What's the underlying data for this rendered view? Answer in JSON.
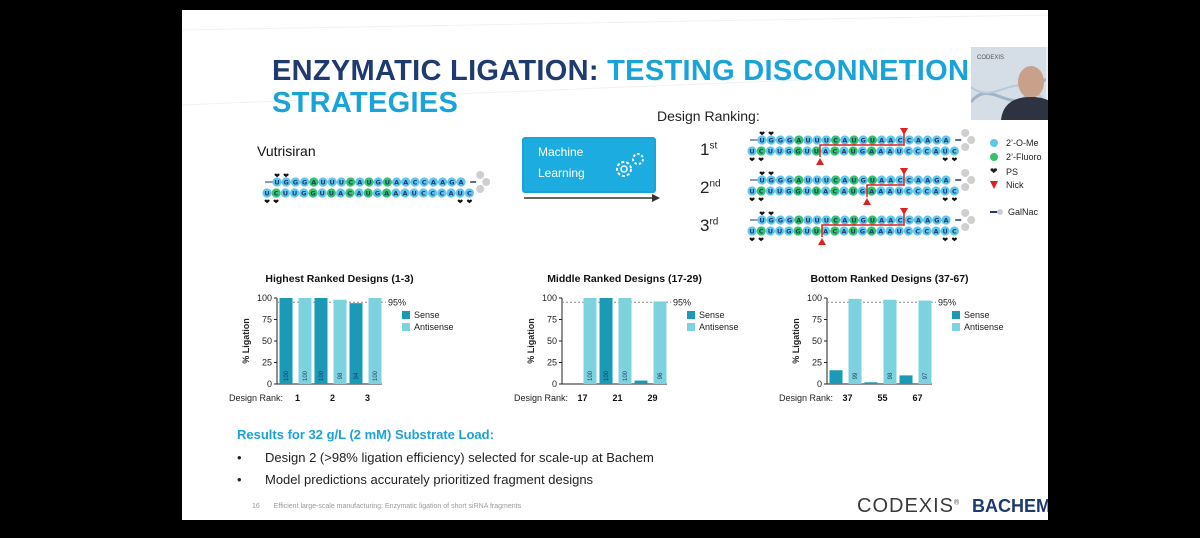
{
  "slide": {
    "title_part1": "ENZYMATIC LIGATION: ",
    "title_part2": "TESTING DISCONNETION",
    "title_part3": "STRATEGIES",
    "design_ranking_label": "Design Ranking:",
    "vutrisiran_label": "Vutrisiran",
    "ml_label_line1": "Machine",
    "ml_label_line2": "Learning",
    "ranks": [
      {
        "num": "1",
        "sup": "st"
      },
      {
        "num": "2",
        "sup": "nd"
      },
      {
        "num": "3",
        "sup": "rd"
      }
    ],
    "webcam_label": "CODEXIS",
    "legend": {
      "ome": "2’-O-Me",
      "fluoro": "2’-Fluoro",
      "ps": "PS",
      "nick": "Nick",
      "galnac": "GalNac"
    },
    "results_heading": "Results for 32 g/L (2 mM) Substrate Load:",
    "bullets": [
      "Design 2 (>98% ligation efficiency) selected for scale-up at Bachem",
      "Model predictions accurately prioritized fragment designs"
    ],
    "page_number": "16",
    "footer_text": "Efficient large-scale manufacturing: Enzymatic ligation of short siRNA fragments",
    "logo_codexis": "CODEXIS",
    "logo_codexis_mark": "®",
    "logo_bachem": "BACHEM"
  },
  "colors": {
    "title_dark": "#1f3a6e",
    "title_cyan": "#1aa3d9",
    "sense": "#1a9ab5",
    "antisense": "#7dd3dd",
    "nick": "#e02020",
    "ome": "#5fc7ee",
    "fluoro": "#31c46a"
  },
  "dna": {
    "sense_seq": "UGGGAUUUCAUGUAACCAAGA",
    "antisense_seq": "UCUUGGUUACAUGAAAUCCCAUC",
    "fluoro_sense": [
      4,
      8,
      10,
      12
    ],
    "fluoro_antisense": [
      1,
      5,
      7,
      9,
      11,
      13
    ]
  },
  "chart_data": [
    {
      "type": "bar",
      "title": "Highest Ranked Designs (1-3)",
      "ylabel": "% Ligation",
      "xlabel": "Design Rank:",
      "ylim": [
        0,
        100
      ],
      "yticks": [
        "0",
        "25",
        "50",
        "75",
        "100"
      ],
      "reference_label": "95%",
      "reference_value": 95,
      "categories": [
        "1",
        "2",
        "3"
      ],
      "series": [
        {
          "name": "Sense",
          "values": [
            100,
            100,
            94
          ]
        },
        {
          "name": "Antisense",
          "values": [
            100,
            98,
            100
          ]
        }
      ],
      "bar_labels": {
        "Sense": [
          "100",
          "100",
          "94"
        ],
        "Antisense": [
          "100",
          "98",
          "100"
        ]
      }
    },
    {
      "type": "bar",
      "title": "Middle Ranked Designs (17-29)",
      "ylabel": "% Ligation",
      "xlabel": "Design Rank:",
      "ylim": [
        0,
        100
      ],
      "yticks": [
        "0",
        "25",
        "50",
        "75",
        "100"
      ],
      "reference_label": "95%",
      "reference_value": 95,
      "categories": [
        "17",
        "21",
        "29"
      ],
      "series": [
        {
          "name": "Sense",
          "values": [
            0,
            100,
            4
          ]
        },
        {
          "name": "Antisense",
          "values": [
            100,
            100,
            96
          ]
        }
      ],
      "bar_labels": {
        "Sense": [
          "",
          "100",
          ""
        ],
        "Antisense": [
          "100",
          "100",
          "96"
        ]
      }
    },
    {
      "type": "bar",
      "title": "Bottom Ranked Designs (37-67)",
      "ylabel": "% Ligation",
      "xlabel": "Design Rank:",
      "ylim": [
        0,
        100
      ],
      "yticks": [
        "0",
        "25",
        "50",
        "75",
        "100"
      ],
      "reference_label": "95%",
      "reference_value": 95,
      "categories": [
        "37",
        "55",
        "67"
      ],
      "series": [
        {
          "name": "Sense",
          "values": [
            16,
            2,
            10
          ]
        },
        {
          "name": "Antisense",
          "values": [
            99,
            98,
            97
          ]
        }
      ],
      "bar_labels": {
        "Sense": [
          "",
          "",
          ""
        ],
        "Antisense": [
          "99",
          "98",
          "97"
        ]
      }
    }
  ]
}
